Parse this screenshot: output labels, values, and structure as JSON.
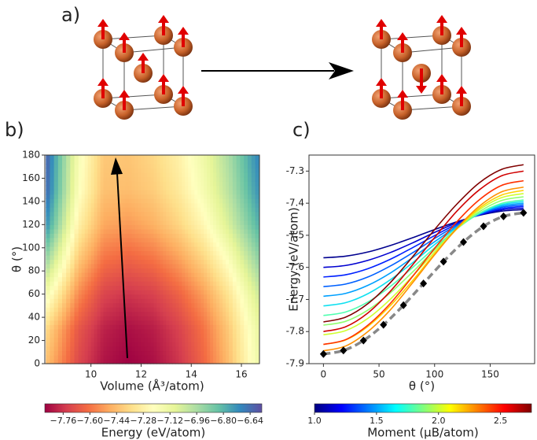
{
  "panel_labels": {
    "a": "a)",
    "b": "b)",
    "c": "c)"
  },
  "chart_data": [
    {
      "type": "contour",
      "xlabel": "Volume (Å³/atom)",
      "ylabel": "θ (°)",
      "x": [
        8.2,
        9.5,
        10.5,
        11.5,
        12.5,
        13.5,
        14.5,
        15.5,
        16.7
      ],
      "y": [
        0,
        30,
        60,
        90,
        120,
        150,
        180
      ],
      "z": [
        [
          -7.43,
          -7.71,
          -7.83,
          -7.87,
          -7.84,
          -7.76,
          -7.63,
          -7.44,
          -7.14
        ],
        [
          -7.36,
          -7.67,
          -7.8,
          -7.84,
          -7.81,
          -7.73,
          -7.6,
          -7.41,
          -7.12
        ],
        [
          -7.16,
          -7.55,
          -7.72,
          -7.76,
          -7.73,
          -7.64,
          -7.51,
          -7.33,
          -7.04
        ],
        [
          -6.92,
          -7.41,
          -7.6,
          -7.64,
          -7.6,
          -7.51,
          -7.38,
          -7.2,
          -6.91
        ],
        [
          -6.71,
          -7.28,
          -7.49,
          -7.52,
          -7.47,
          -7.38,
          -7.25,
          -7.06,
          -6.79
        ],
        [
          -6.62,
          -7.2,
          -7.43,
          -7.44,
          -7.4,
          -7.31,
          -7.17,
          -6.99,
          -6.72
        ],
        [
          -6.6,
          -7.18,
          -7.41,
          -7.42,
          -7.37,
          -7.28,
          -7.14,
          -6.96,
          -6.69
        ]
      ],
      "xlim": [
        8.16,
        16.72
      ],
      "ylim": [
        0,
        180
      ],
      "xticks": [
        10,
        12,
        14,
        16
      ],
      "yticks": [
        0,
        20,
        40,
        60,
        80,
        100,
        120,
        140,
        160,
        180
      ],
      "colormap": [
        "#9e0142",
        "#d53e4f",
        "#f46d43",
        "#fdae61",
        "#fee08b",
        "#ffffbf",
        "#e6f598",
        "#abdda4",
        "#66c2a5",
        "#3288bd",
        "#5e4fa2"
      ],
      "colorbar": {
        "label": "Energy (eV/atom)",
        "lim": [
          -7.87,
          -6.57
        ],
        "ticks": [
          {
            "value": -7.76,
            "label": "−7.76"
          },
          {
            "value": -7.6,
            "label": "−7.60"
          },
          {
            "value": -7.44,
            "label": "−7.44"
          },
          {
            "value": -7.28,
            "label": "−7.28"
          },
          {
            "value": -7.12,
            "label": "−7.12"
          },
          {
            "value": -6.96,
            "label": "−6.96"
          },
          {
            "value": -6.8,
            "label": "−6.80"
          },
          {
            "value": -6.64,
            "label": "−6.64"
          }
        ]
      }
    },
    {
      "type": "line",
      "xlabel": "θ (°)",
      "ylabel": "Energy (eV/atom)",
      "x": [
        0,
        20,
        40,
        60,
        80,
        100,
        120,
        140,
        160,
        180
      ],
      "series": [
        {
          "color": "#00008f",
          "values": [
            -7.57,
            -7.565,
            -7.552,
            -7.532,
            -7.508,
            -7.482,
            -7.458,
            -7.438,
            -7.425,
            -7.42
          ]
        },
        {
          "color": "#0000d0",
          "values": [
            -7.6,
            -7.594,
            -7.578,
            -7.554,
            -7.524,
            -7.491,
            -7.461,
            -7.437,
            -7.421,
            -7.415
          ]
        },
        {
          "color": "#0020ff",
          "values": [
            -7.63,
            -7.623,
            -7.604,
            -7.575,
            -7.539,
            -7.501,
            -7.465,
            -7.436,
            -7.417,
            -7.41
          ]
        },
        {
          "color": "#0060ff",
          "values": [
            -7.66,
            -7.652,
            -7.63,
            -7.596,
            -7.555,
            -7.51,
            -7.469,
            -7.435,
            -7.413,
            -7.405
          ]
        },
        {
          "color": "#00a0ff",
          "values": [
            -7.69,
            -7.681,
            -7.656,
            -7.618,
            -7.57,
            -7.52,
            -7.473,
            -7.434,
            -7.409,
            -7.4
          ]
        },
        {
          "color": "#10e0f0",
          "values": [
            -7.72,
            -7.71,
            -7.682,
            -7.639,
            -7.586,
            -7.529,
            -7.476,
            -7.433,
            -7.405,
            -7.395
          ]
        },
        {
          "color": "#50ffb0",
          "values": [
            -7.75,
            -7.739,
            -7.708,
            -7.66,
            -7.601,
            -7.539,
            -7.48,
            -7.432,
            -7.401,
            -7.39
          ]
        },
        {
          "color": "#90ff70",
          "values": [
            -7.78,
            -7.768,
            -7.733,
            -7.68,
            -7.615,
            -7.545,
            -7.48,
            -7.427,
            -7.392,
            -7.38
          ]
        },
        {
          "color": "#d0ff30",
          "values": [
            -7.81,
            -7.797,
            -7.759,
            -7.7,
            -7.628,
            -7.552,
            -7.48,
            -7.421,
            -7.383,
            -7.37
          ]
        },
        {
          "color": "#ffd000",
          "values": [
            -7.84,
            -7.826,
            -7.784,
            -7.72,
            -7.642,
            -7.558,
            -7.48,
            -7.416,
            -7.375,
            -7.36
          ]
        },
        {
          "color": "#ff9000",
          "values": [
            -7.86,
            -7.845,
            -7.8,
            -7.733,
            -7.649,
            -7.561,
            -7.478,
            -7.41,
            -7.365,
            -7.35
          ]
        },
        {
          "color": "#ff3000",
          "values": [
            -7.84,
            -7.825,
            -7.78,
            -7.713,
            -7.629,
            -7.541,
            -7.458,
            -7.39,
            -7.345,
            -7.33
          ]
        },
        {
          "color": "#d00000",
          "values": [
            -7.8,
            -7.785,
            -7.742,
            -7.675,
            -7.593,
            -7.507,
            -7.425,
            -7.359,
            -7.315,
            -7.3
          ]
        },
        {
          "color": "#800000",
          "values": [
            -7.77,
            -7.755,
            -7.713,
            -7.648,
            -7.568,
            -7.482,
            -7.403,
            -7.337,
            -7.295,
            -7.28
          ]
        }
      ],
      "minimum": {
        "color": "#888888",
        "marker_color": "#000000",
        "x": [
          0,
          18,
          36,
          54,
          72,
          90,
          108,
          126,
          144,
          162,
          180
        ],
        "values": [
          -7.87,
          -7.859,
          -7.828,
          -7.779,
          -7.718,
          -7.65,
          -7.582,
          -7.521,
          -7.472,
          -7.441,
          -7.43
        ]
      },
      "xlim": [
        -13,
        190
      ],
      "ylim": [
        -7.9,
        -7.25
      ],
      "xticks": [
        0,
        50,
        100,
        150
      ],
      "yticks": [
        -7.9,
        -7.8,
        -7.7,
        -7.6,
        -7.5,
        -7.4,
        -7.3
      ],
      "colormap": [
        "#00007f",
        "#0000ff",
        "#007fff",
        "#00ffff",
        "#7fff7f",
        "#ffff00",
        "#ff7f00",
        "#ff0000",
        "#7f0000"
      ],
      "colorbar": {
        "label": "Moment (μB/atom)",
        "lim": [
          1.0,
          2.75
        ],
        "ticks": [
          {
            "value": 1,
            "label": "1.0"
          },
          1.5,
          {
            "value": 2,
            "label": "2.0"
          },
          2.5
        ]
      }
    }
  ]
}
